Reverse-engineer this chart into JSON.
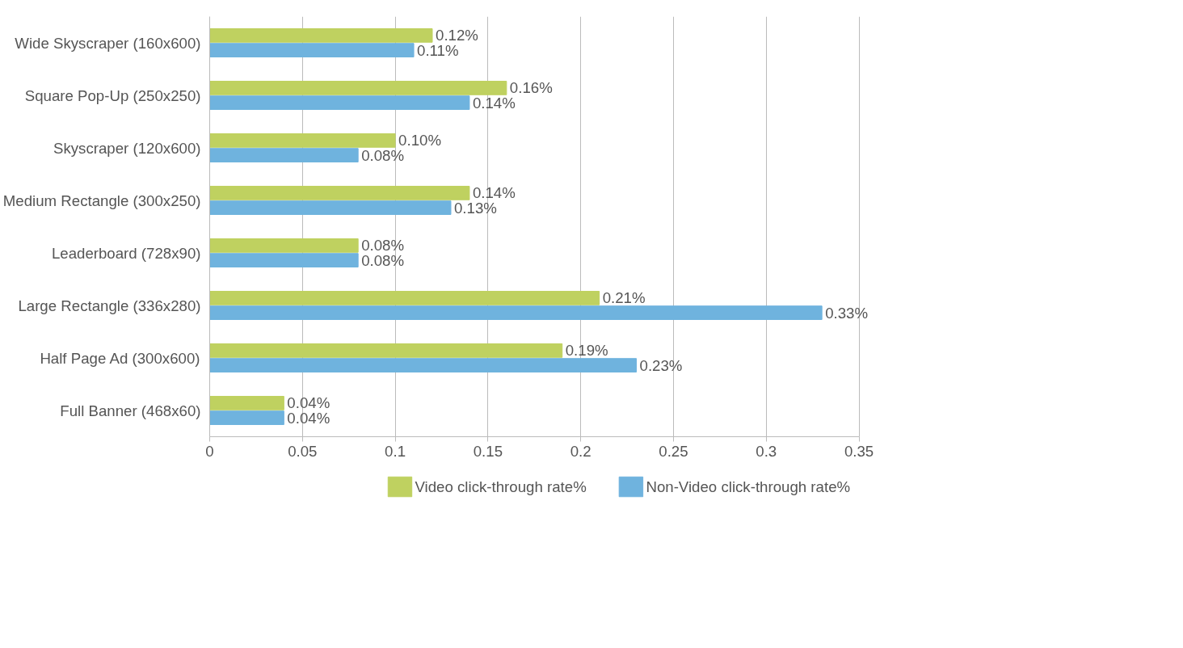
{
  "chart_data": {
    "type": "bar",
    "orientation": "horizontal",
    "categories": [
      "Wide Skyscraper (160x600)",
      "Square Pop-Up (250x250)",
      "Skyscraper (120x600)",
      "Medium Rectangle (300x250)",
      "Leaderboard (728x90)",
      "Large Rectangle (336x280)",
      "Half Page Ad (300x600)",
      "Full Banner (468x60)"
    ],
    "series": [
      {
        "name": "Video click-through rate%",
        "color": "#bfd160",
        "values": [
          0.12,
          0.16,
          0.1,
          0.14,
          0.08,
          0.21,
          0.19,
          0.04
        ],
        "value_labels": [
          "0.12%",
          "0.16%",
          "0.10%",
          "0.14%",
          "0.08%",
          "0.21%",
          "0.19%",
          "0.04%"
        ]
      },
      {
        "name": "Non-Video click-through rate%",
        "color": "#6fb3de",
        "values": [
          0.11,
          0.14,
          0.08,
          0.13,
          0.08,
          0.33,
          0.23,
          0.04
        ],
        "value_labels": [
          "0.11%",
          "0.14%",
          "0.08%",
          "0.13%",
          "0.08%",
          "0.33%",
          "0.23%",
          "0.04%"
        ]
      }
    ],
    "xlim": [
      0,
      0.35
    ],
    "xticks": [
      0,
      0.05,
      0.1,
      0.15,
      0.2,
      0.25,
      0.3,
      0.35
    ],
    "grid": "x",
    "legend": "bottom"
  }
}
